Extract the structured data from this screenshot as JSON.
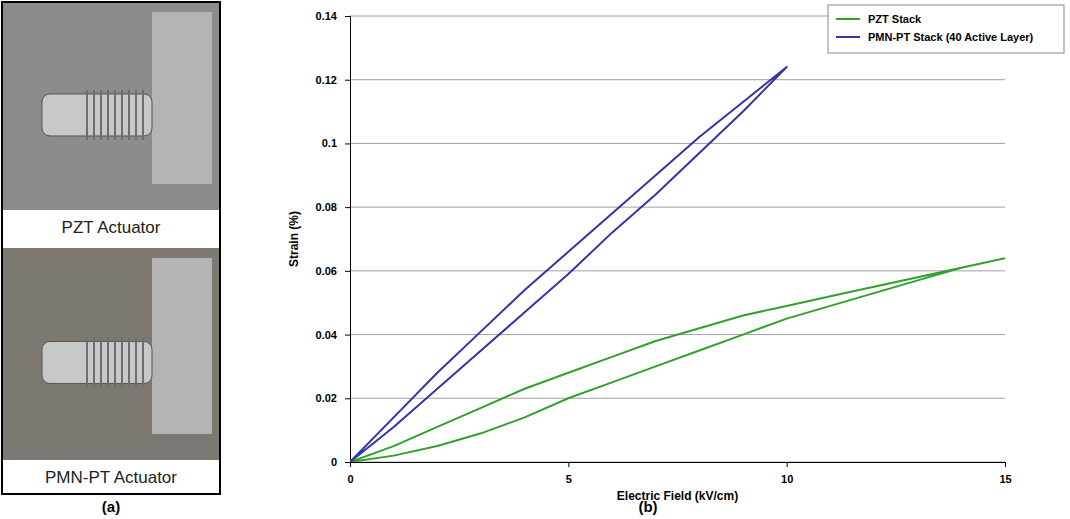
{
  "chart_data": {
    "type": "line",
    "x_label": "Electric Field (kV/cm)",
    "y_label": "Strain (%)",
    "xlim": [
      0,
      15
    ],
    "xticks": [
      0,
      5,
      10,
      15
    ],
    "ylim": [
      0,
      0.14
    ],
    "yticks": [
      0,
      0.02,
      0.04,
      0.06,
      0.08,
      0.1,
      0.12,
      0.14
    ],
    "grid": "y",
    "legend": "upper right",
    "series": [
      {
        "name": "PZT Stack",
        "color": "#33a02c",
        "x": [
          0,
          1,
          2,
          3,
          4,
          5,
          6,
          7,
          8,
          9,
          10,
          11,
          12,
          13,
          14,
          15,
          14,
          13,
          12,
          11,
          10,
          9,
          8,
          7,
          6,
          5,
          4,
          3,
          2,
          1,
          0
        ],
        "values": [
          0,
          0.002,
          0.005,
          0.009,
          0.014,
          0.02,
          0.025,
          0.03,
          0.035,
          0.04,
          0.045,
          0.049,
          0.053,
          0.057,
          0.061,
          0.064,
          0.061,
          0.058,
          0.055,
          0.052,
          0.049,
          0.046,
          0.042,
          0.038,
          0.033,
          0.028,
          0.023,
          0.017,
          0.011,
          0.005,
          0
        ]
      },
      {
        "name": "PMN-PT Stack (40 Active Layer)",
        "color": "#3333aa",
        "x": [
          0,
          1,
          2,
          3,
          4,
          5,
          6,
          7,
          8,
          9,
          10,
          9,
          8,
          7,
          6,
          5,
          4,
          3,
          2,
          1,
          0
        ],
        "values": [
          0,
          0.011,
          0.023,
          0.035,
          0.047,
          0.059,
          0.072,
          0.084,
          0.097,
          0.11,
          0.124,
          0.113,
          0.102,
          0.09,
          0.078,
          0.066,
          0.054,
          0.041,
          0.028,
          0.014,
          0
        ]
      }
    ]
  },
  "photos": [
    {
      "caption": "PZT Actuator"
    },
    {
      "caption": "PMN-PT Actuator"
    }
  ],
  "panel_labels": [
    "(a)",
    "(b)"
  ]
}
